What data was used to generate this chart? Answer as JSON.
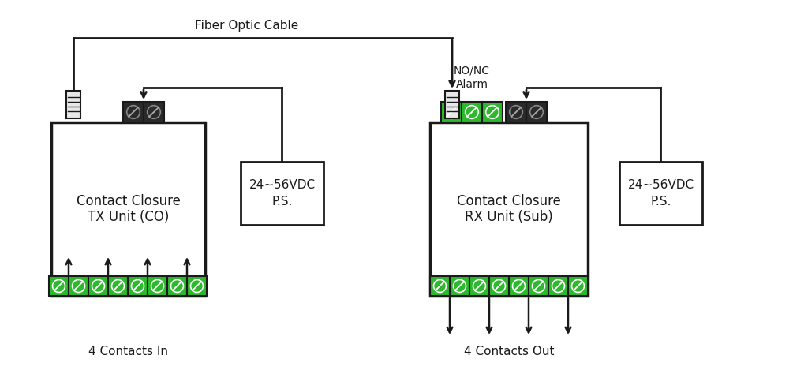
{
  "bg_color": "#ffffff",
  "line_color": "#1a1a1a",
  "green_color": "#2db82d",
  "dark_color": "#2a2a2a",
  "fiber_label": "Fiber Optic Cable",
  "nonc_label": "NO/NC\nAlarm",
  "contacts_in_label": "4 Contacts In",
  "contacts_out_label": "4 Contacts Out",
  "tx_label_line1": "Contact Closure",
  "tx_label_line2": "TX Unit (CO)",
  "rx_label_line1": "Contact Closure",
  "rx_label_line2": "RX Unit (Sub)",
  "ps_label": "24~56VDC\nP.S.",
  "lw": 2.0
}
